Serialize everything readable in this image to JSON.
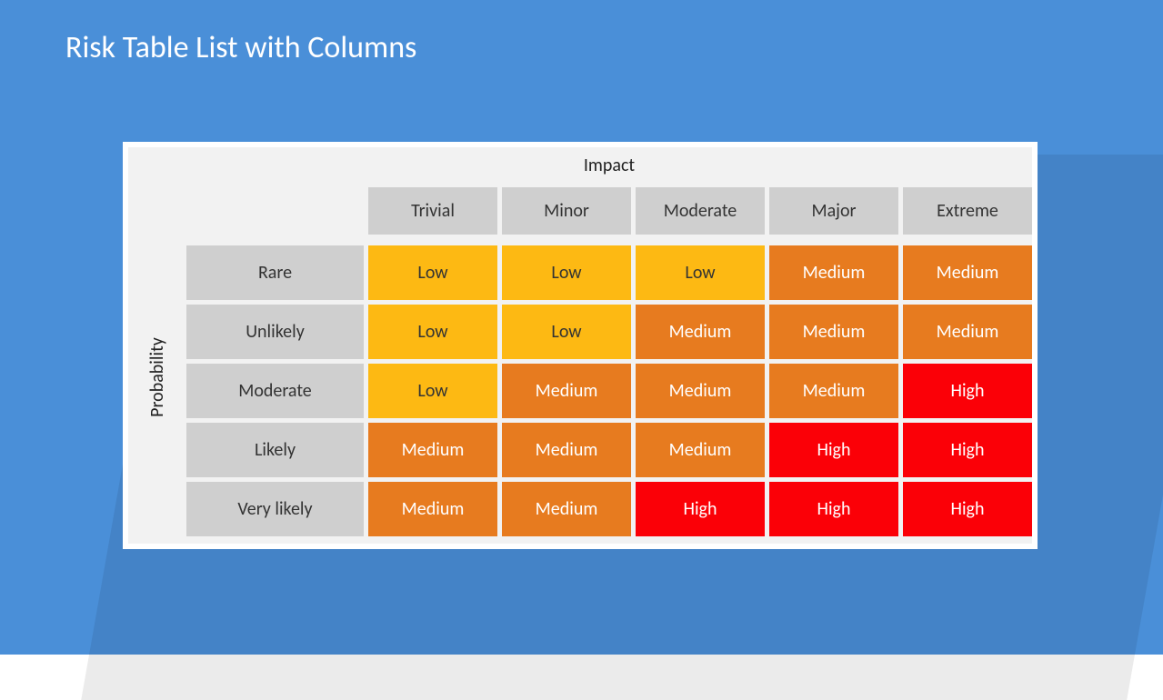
{
  "slide": {
    "background_color": "#4a8fd8",
    "title": "Risk Table List with Columns",
    "title_color": "#ffffff",
    "title_fontsize": 34
  },
  "card": {
    "background_color": "#ffffff",
    "inner_background_color": "#f2f2f2",
    "shadow_color": "rgba(0,0,0,0.08)"
  },
  "matrix": {
    "type": "heatmap",
    "x_axis_label": "Impact",
    "y_axis_label": "Probability",
    "axis_label_color": "#222222",
    "axis_label_fontsize": 20,
    "column_headers": [
      "Trivial",
      "Minor",
      "Moderate",
      "Major",
      "Extreme"
    ],
    "row_headers": [
      "Rare",
      "Unlikely",
      "Moderate",
      "Likely",
      "Very likely"
    ],
    "header_bg_color": "#cfcfcf",
    "header_text_color": "#333333",
    "header_fontsize": 20,
    "cell_fontsize": 20,
    "levels": {
      "Low": {
        "bg": "#fdb913",
        "text": "#333333"
      },
      "Medium": {
        "bg": "#e77b1f",
        "text": "#ffffff"
      },
      "High": {
        "bg": "#fb0007",
        "text": "#ffffff"
      }
    },
    "cells": [
      [
        "Low",
        "Low",
        "Low",
        "Medium",
        "Medium"
      ],
      [
        "Low",
        "Low",
        "Medium",
        "Medium",
        "Medium"
      ],
      [
        "Low",
        "Medium",
        "Medium",
        "Medium",
        "High"
      ],
      [
        "Medium",
        "Medium",
        "Medium",
        "High",
        "High"
      ],
      [
        "Medium",
        "Medium",
        "High",
        "High",
        "High"
      ]
    ]
  }
}
